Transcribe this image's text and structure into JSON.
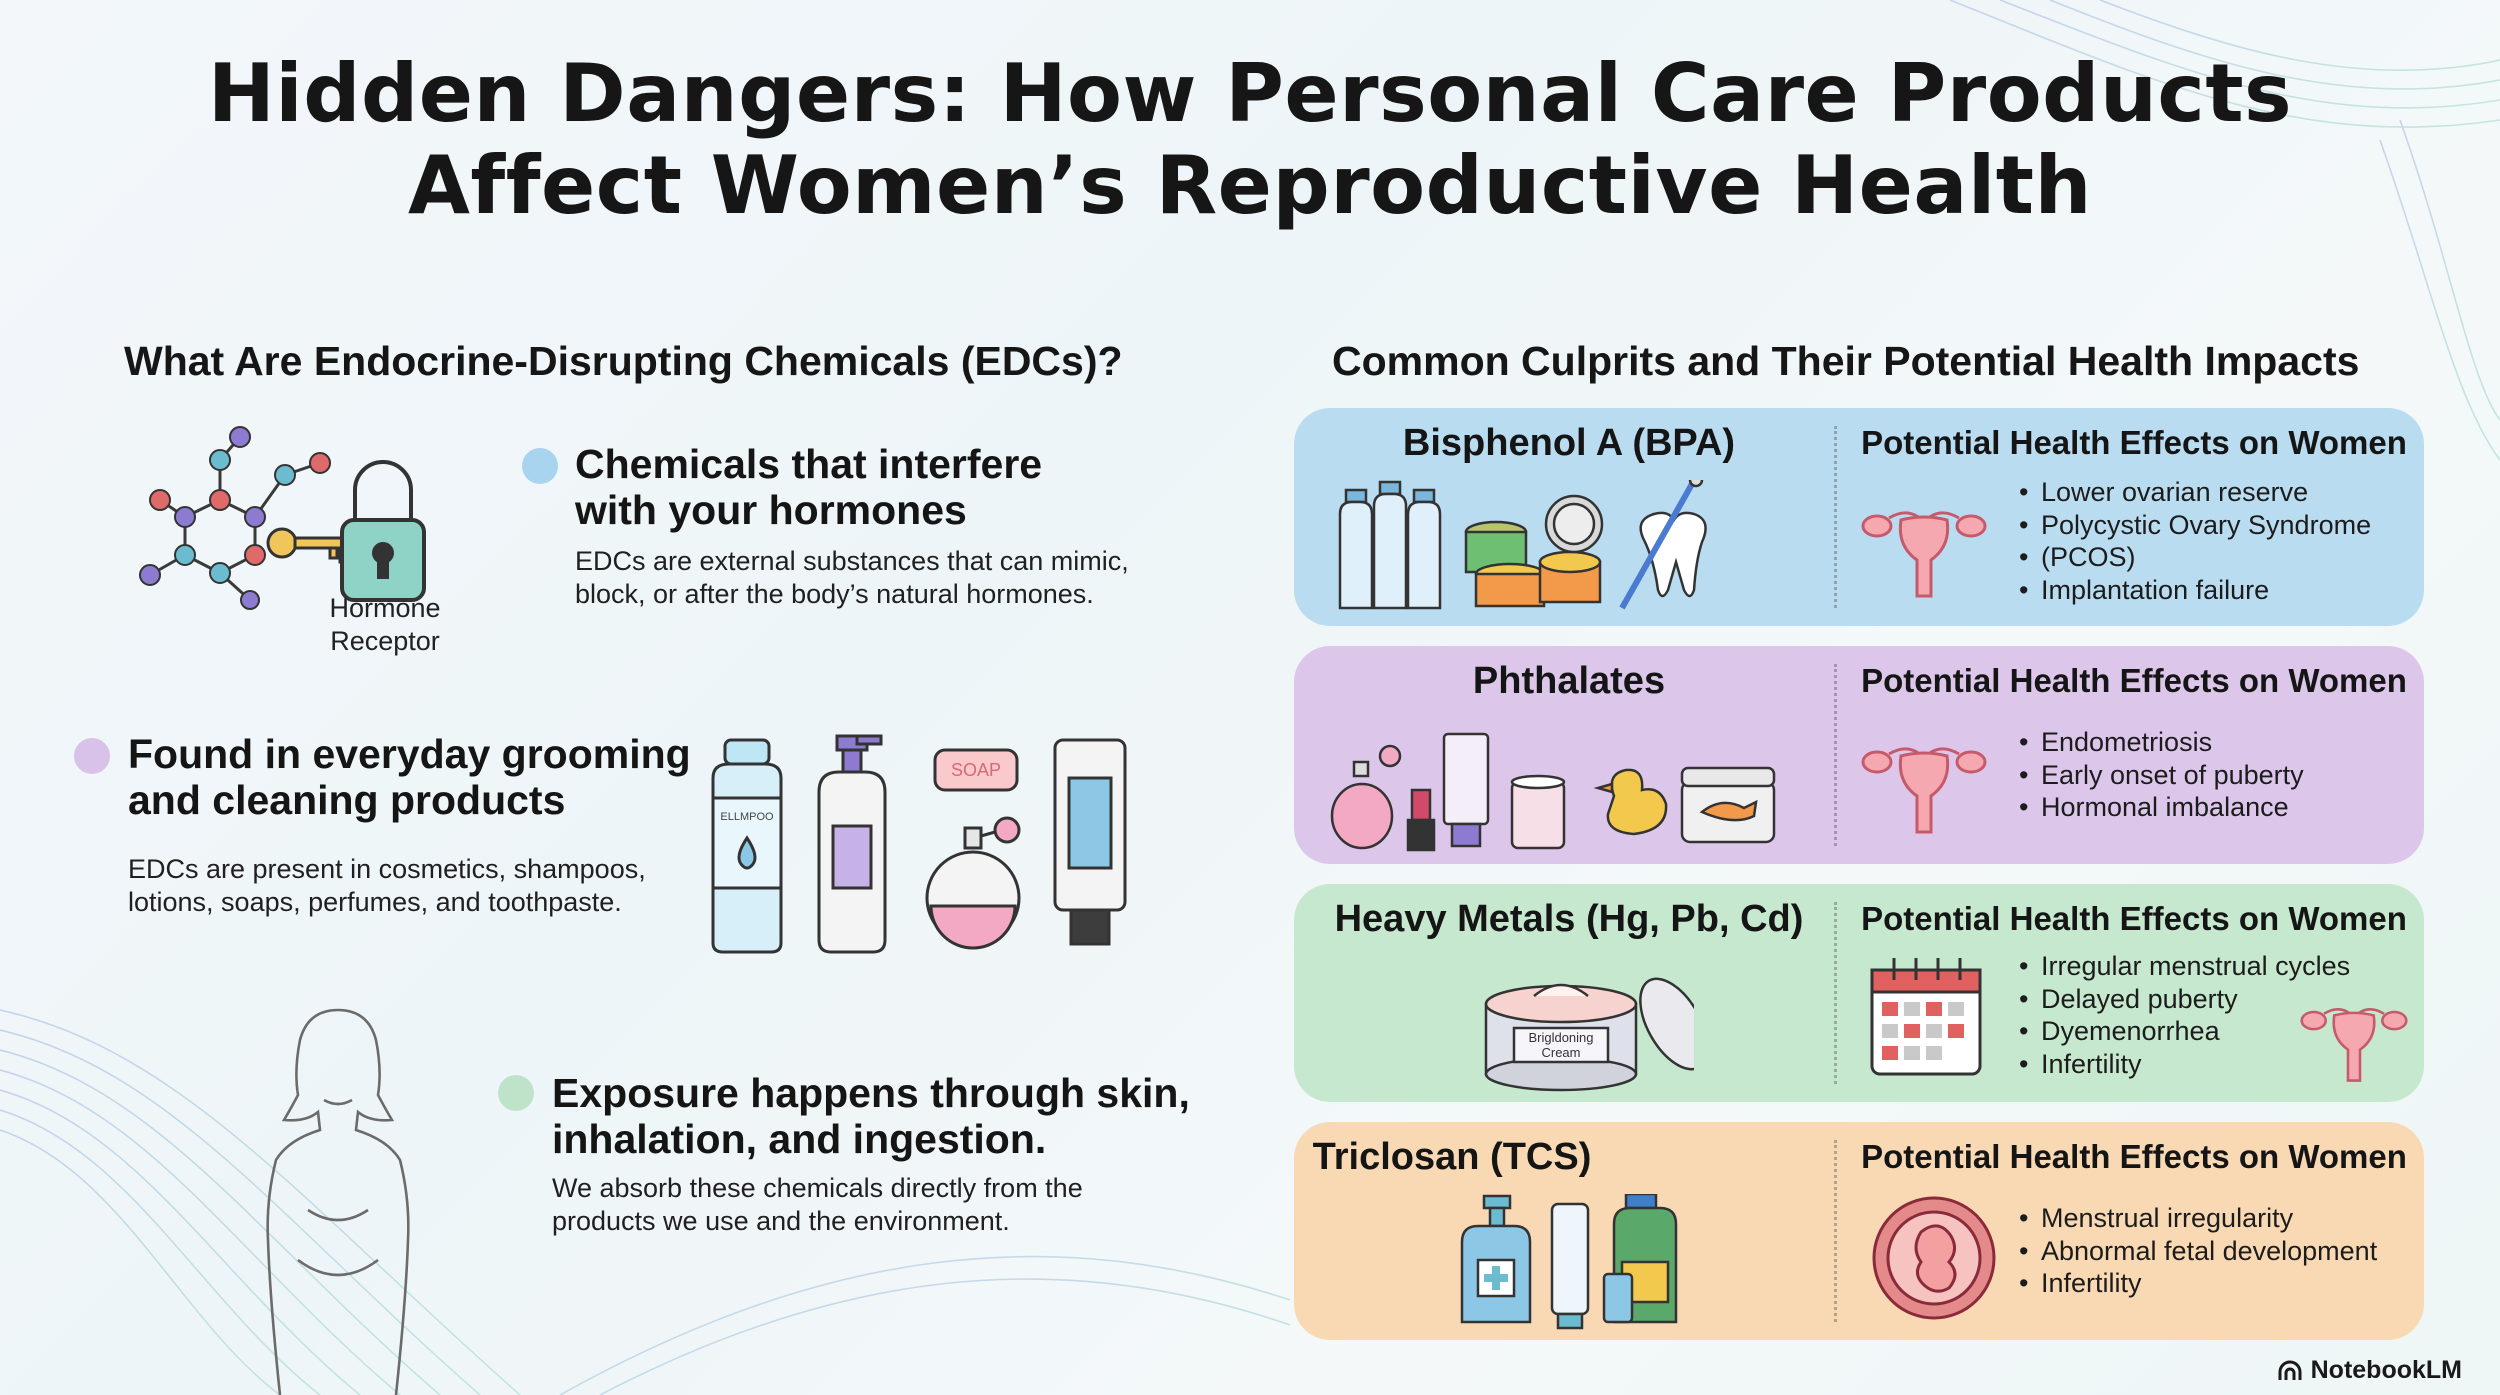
{
  "title": {
    "line1": "Hidden Dangers: How Personal Care Products",
    "line2": "Affect Women’s Reproductive Health"
  },
  "left": {
    "heading": "What Are Endocrine-Disrupting Chemicals (EDCs)?",
    "receptor_label_1": "Hormone",
    "receptor_label_2": "Receptor",
    "bullets": [
      {
        "title_1": "Chemicals that interfere",
        "title_2": "with your hormones",
        "text_1": "EDCs are external substances that can mimic,",
        "text_2": "block, or after the body’s natural hormones.",
        "color": "#a8d4ef"
      },
      {
        "title_1": "Found in everyday grooming",
        "title_2": "and cleaning products",
        "text_1": "EDCs are present in cosmetics, shampoos,",
        "text_2": "lotions, soaps, perfumes, and toothpaste.",
        "color": "#d9c2ea"
      },
      {
        "title_1": "Exposure happens through skin,",
        "title_2": "inhalation, and ingestion.",
        "text_1": "We absorb these chemicals directly from the",
        "text_2": "products we use and the environment.",
        "color": "#bfe3c9"
      }
    ],
    "product_labels": {
      "shampoo": "ELLMPOO",
      "soap": "SOAP"
    }
  },
  "right": {
    "heading": "Common Culprits and Their Potential Health Impacts",
    "cards": [
      {
        "name": "Bisphenol A (BPA)",
        "effects_title": "Potential Health Effects on Women",
        "effects": [
          "Lower ovarian reserve",
          "Polycystic Ovary Syndrome",
          "(PCOS)",
          "Implantation failure"
        ],
        "color": "#b9dcf0",
        "icon": "uterus-icon"
      },
      {
        "name": "Phthalates",
        "effects_title": "Potential Health Effects on Women",
        "effects": [
          "Endometriosis",
          "Early onset of puberty",
          "Hormonal imbalance"
        ],
        "color": "#dcc7eb",
        "icon": "uterus-icon"
      },
      {
        "name": "Heavy Metals (Hg, Pb, Cd)",
        "effects_title": "Potential Health Effects on Women",
        "effects": [
          "Irregular menstrual cycles",
          "Delayed puberty",
          "Dyemenorrhea",
          "Infertility"
        ],
        "color": "#c6e8cf",
        "icon": "calendar-icon",
        "jar_label_1": "Brigldoning",
        "jar_label_2": "Cream"
      },
      {
        "name": "Triclosan (TCS)",
        "effects_title": "Potential Health Effects on Women",
        "effects": [
          "Menstrual irregularity",
          "Abnormal fetal development",
          "Infertility"
        ],
        "color": "#f8d9b4",
        "icon": "fetus-icon"
      }
    ]
  },
  "brand": "NotebookLM"
}
